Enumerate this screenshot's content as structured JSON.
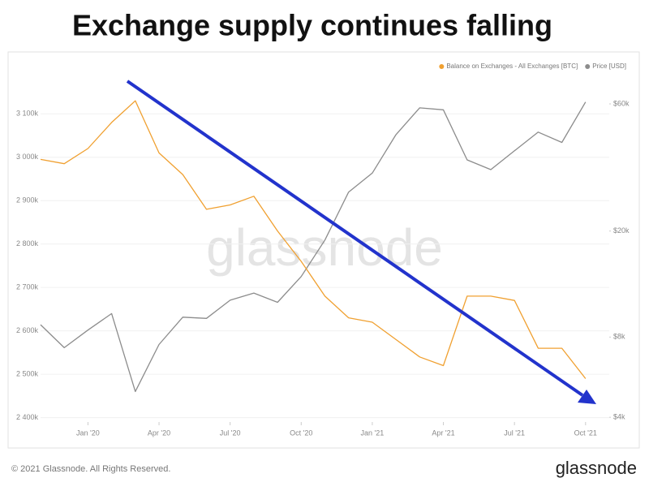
{
  "chart_data": {
    "type": "line",
    "title": "Exchange supply continues falling",
    "watermark": "glassnode",
    "footer": "© 2021 Glassnode. All Rights Reserved.",
    "brand": "glassnode",
    "x": [
      "2019-11",
      "2019-12",
      "2020-01",
      "2020-02",
      "2020-03",
      "2020-04",
      "2020-05",
      "2020-06",
      "2020-07",
      "2020-08",
      "2020-09",
      "2020-10",
      "2020-11",
      "2020-12",
      "2021-01",
      "2021-02",
      "2021-03",
      "2021-04",
      "2021-05",
      "2021-06",
      "2021-07",
      "2021-08",
      "2021-09",
      "2021-10"
    ],
    "xlim": [
      "2019-11",
      "2021-11"
    ],
    "xticks": [
      {
        "value": "2020-01",
        "label": "Jan '20"
      },
      {
        "value": "2020-04",
        "label": "Apr '20"
      },
      {
        "value": "2020-07",
        "label": "Jul '20"
      },
      {
        "value": "2020-10",
        "label": "Oct '20"
      },
      {
        "value": "2021-01",
        "label": "Jan '21"
      },
      {
        "value": "2021-04",
        "label": "Apr '21"
      },
      {
        "value": "2021-07",
        "label": "Jul '21"
      },
      {
        "value": "2021-10",
        "label": "Oct '21"
      }
    ],
    "ylim": [
      2390000,
      3235000
    ],
    "yticks": [
      {
        "value": 2400000,
        "label": "2 400k"
      },
      {
        "value": 2500000,
        "label": "2 500k"
      },
      {
        "value": 2600000,
        "label": "2 600k"
      },
      {
        "value": 2700000,
        "label": "2 700k"
      },
      {
        "value": 2800000,
        "label": "2 800k"
      },
      {
        "value": 2900000,
        "label": "2 900k"
      },
      {
        "value": 3000000,
        "label": "3 000k"
      },
      {
        "value": 3100000,
        "label": "3 100k"
      }
    ],
    "y2lim": [
      3840,
      91400
    ],
    "y2_log_scale": true,
    "y2ticks": [
      {
        "value": 4000,
        "label": "$4k"
      },
      {
        "value": 8000,
        "label": "$8k"
      },
      {
        "value": 20000,
        "label": "$20k"
      },
      {
        "value": 60000,
        "label": "$60k"
      }
    ],
    "grid": true,
    "legend_position": "top-right",
    "series": [
      {
        "name": "Balance on Exchanges - All Exchanges [BTC]",
        "color": "#f0a030",
        "values": [
          2995000,
          2985000,
          3020000,
          3080000,
          3130000,
          3010000,
          2960000,
          2880000,
          2890000,
          2910000,
          2830000,
          2760000,
          2680000,
          2630000,
          2620000,
          2580000,
          2540000,
          2520000,
          2680000,
          2680000,
          2670000,
          2560000,
          2560000,
          2490000
        ]
      },
      {
        "name": "Price [USD]",
        "color": "#8c8c8c",
        "axis": "y2",
        "values": [
          8900,
          7300,
          8500,
          9800,
          5000,
          7500,
          9500,
          9400,
          11000,
          11700,
          10800,
          13500,
          18500,
          28000,
          33000,
          46000,
          58000,
          57000,
          37000,
          34000,
          40000,
          47000,
          43000,
          61000
        ]
      }
    ]
  }
}
